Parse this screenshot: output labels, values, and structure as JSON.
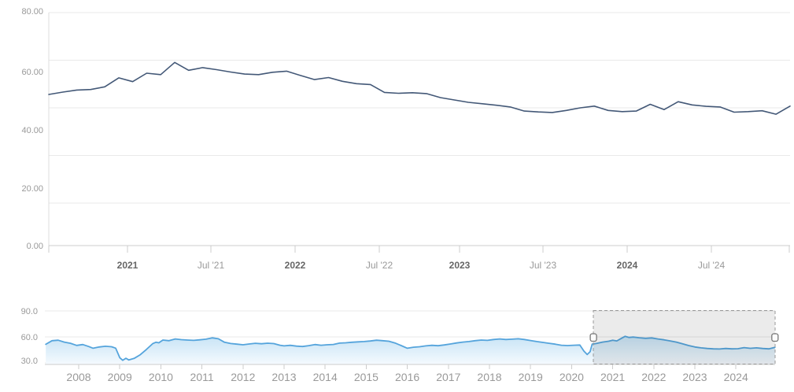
{
  "chart_data": [
    {
      "id": "price-series",
      "type": "line",
      "title": "",
      "x_unit": "month",
      "x": [
        "2020-07",
        "2020-08",
        "2020-09",
        "2020-10",
        "2020-11",
        "2020-12",
        "2021-01",
        "2021-02",
        "2021-03",
        "2021-04",
        "2021-05",
        "2021-06",
        "2021-07",
        "2021-08",
        "2021-09",
        "2021-10",
        "2021-11",
        "2021-12",
        "2022-01",
        "2022-02",
        "2022-03",
        "2022-04",
        "2022-05",
        "2022-06",
        "2022-07",
        "2022-08",
        "2022-09",
        "2022-10",
        "2022-11",
        "2022-12",
        "2023-01",
        "2023-02",
        "2023-03",
        "2023-04",
        "2023-05",
        "2023-06",
        "2023-07",
        "2023-08",
        "2023-09",
        "2023-10",
        "2023-11",
        "2023-12",
        "2024-01",
        "2024-02",
        "2024-03",
        "2024-04",
        "2024-05",
        "2024-06",
        "2024-07",
        "2024-08",
        "2024-09",
        "2024-10",
        "2024-11",
        "2024-12"
      ],
      "values": [
        51.9,
        52.7,
        53.4,
        53.6,
        54.5,
        57.6,
        56.3,
        59.2,
        58.7,
        62.9,
        60.2,
        61.1,
        60.4,
        59.6,
        58.9,
        58.7,
        59.5,
        59.9,
        58.4,
        57.0,
        57.7,
        56.4,
        55.6,
        55.3,
        52.6,
        52.3,
        52.5,
        52.2,
        50.8,
        50.0,
        49.2,
        48.7,
        48.2,
        47.6,
        46.2,
        45.9,
        45.7,
        46.4,
        47.3,
        47.9,
        46.4,
        46.0,
        46.2,
        48.5,
        46.7,
        49.4,
        48.3,
        47.8,
        47.6,
        45.8,
        46.0,
        46.3,
        45.1,
        47.9
      ],
      "ylim": [
        0,
        80
      ],
      "grid": true,
      "y_tick_labels": [
        "80.00",
        "60.00",
        "40.00",
        "20.00",
        "0.00"
      ],
      "x_tick_labels": [
        "2021",
        "Jul '21",
        "2022",
        "Jul '22",
        "2023",
        "Jul '23",
        "2024",
        "Jul '24"
      ],
      "line_color": "#435877"
    },
    {
      "id": "navigator-series",
      "type": "area",
      "x_unit": "decimal-year",
      "x": [
        2007.2,
        2007.35,
        2007.5,
        2007.65,
        2007.8,
        2007.95,
        2008.1,
        2008.25,
        2008.35,
        2008.5,
        2008.65,
        2008.8,
        2008.9,
        2009.0,
        2009.07,
        2009.15,
        2009.22,
        2009.35,
        2009.5,
        2009.65,
        2009.8,
        2009.88,
        2009.95,
        2010.05,
        2010.2,
        2010.35,
        2010.5,
        2010.65,
        2010.8,
        2010.95,
        2011.1,
        2011.25,
        2011.4,
        2011.55,
        2011.7,
        2011.85,
        2012.0,
        2012.15,
        2012.3,
        2012.45,
        2012.6,
        2012.75,
        2012.9,
        2013.0,
        2013.15,
        2013.3,
        2013.45,
        2013.6,
        2013.75,
        2013.9,
        2014.05,
        2014.2,
        2014.35,
        2014.5,
        2014.65,
        2014.8,
        2014.95,
        2015.1,
        2015.25,
        2015.4,
        2015.55,
        2015.7,
        2015.85,
        2016.0,
        2016.15,
        2016.3,
        2016.45,
        2016.6,
        2016.75,
        2016.9,
        2017.05,
        2017.2,
        2017.35,
        2017.5,
        2017.65,
        2017.8,
        2017.95,
        2018.1,
        2018.25,
        2018.4,
        2018.55,
        2018.7,
        2018.85,
        2019.0,
        2019.15,
        2019.3,
        2019.45,
        2019.6,
        2019.75,
        2019.9,
        2020.05,
        2020.2,
        2020.3,
        2020.38,
        2020.45,
        2020.5,
        2020.6,
        2020.75,
        2020.9,
        2021.0,
        2021.1,
        2021.2,
        2021.3,
        2021.4,
        2021.5,
        2021.65,
        2021.8,
        2021.95,
        2022.1,
        2022.25,
        2022.4,
        2022.55,
        2022.7,
        2022.85,
        2023.0,
        2023.15,
        2023.3,
        2023.45,
        2023.6,
        2023.75,
        2023.9,
        2024.05,
        2024.2,
        2024.35,
        2024.5,
        2024.65,
        2024.8,
        2024.95
      ],
      "values": [
        51.5,
        55.6,
        56.2,
        54.0,
        52.6,
        50.2,
        51.2,
        48.8,
        46.9,
        48.4,
        49.2,
        48.6,
        47.0,
        36.0,
        33.0,
        35.4,
        33.4,
        35.2,
        39.5,
        45.5,
        52.2,
        53.8,
        53.2,
        56.4,
        55.6,
        57.6,
        56.8,
        56.4,
        56.0,
        56.6,
        57.4,
        58.9,
        57.8,
        53.8,
        52.4,
        51.6,
        50.9,
        51.8,
        52.6,
        52.1,
        52.7,
        52.3,
        50.4,
        49.6,
        50.3,
        49.4,
        48.9,
        49.9,
        51.2,
        50.4,
        50.9,
        51.3,
        52.8,
        53.2,
        53.8,
        54.3,
        54.6,
        55.3,
        56.2,
        55.6,
        55.0,
        53.0,
        50.0,
        46.9,
        48.1,
        48.6,
        49.6,
        50.3,
        49.8,
        50.7,
        51.8,
        53.0,
        54.0,
        54.6,
        55.6,
        56.4,
        56.0,
        57.0,
        57.6,
        57.0,
        57.4,
        57.8,
        57.0,
        55.8,
        54.6,
        53.6,
        52.6,
        51.6,
        50.4,
        50.0,
        50.4,
        50.6,
        43.5,
        39.6,
        43.0,
        51.6,
        52.4,
        54.0,
        55.0,
        56.2,
        55.4,
        58.0,
        60.6,
        59.4,
        59.8,
        59.0,
        58.4,
        58.8,
        57.6,
        56.6,
        55.4,
        54.0,
        52.0,
        50.0,
        48.4,
        47.4,
        46.6,
        46.2,
        46.0,
        46.6,
        46.2,
        46.4,
        47.6,
        46.8,
        47.4,
        46.6,
        46.2,
        48.0
      ],
      "ylim": [
        30,
        90
      ],
      "y_tick_labels": [
        "90.0",
        "60.0",
        "30.0"
      ],
      "x_tick_labels": [
        "2008",
        "2009",
        "2010",
        "2011",
        "2012",
        "2013",
        "2014",
        "2015",
        "2016",
        "2017",
        "2018",
        "2019",
        "2020",
        "2021",
        "2022",
        "2023",
        "2024"
      ],
      "line_color": "#55a4dc",
      "fill_gradient_top": "#9ecfee",
      "fill_gradient_bottom": "#f5fafe",
      "selection": {
        "from_year": 2020.53,
        "to_year": 2024.95
      }
    }
  ],
  "colors": {
    "background": "#ffffff",
    "main_line": "#435877",
    "navigator_line": "#55a4dc",
    "grid": "#e9e9e9",
    "axis_label": "#999999",
    "year_label": "#666666",
    "selection_border": "#999999"
  }
}
